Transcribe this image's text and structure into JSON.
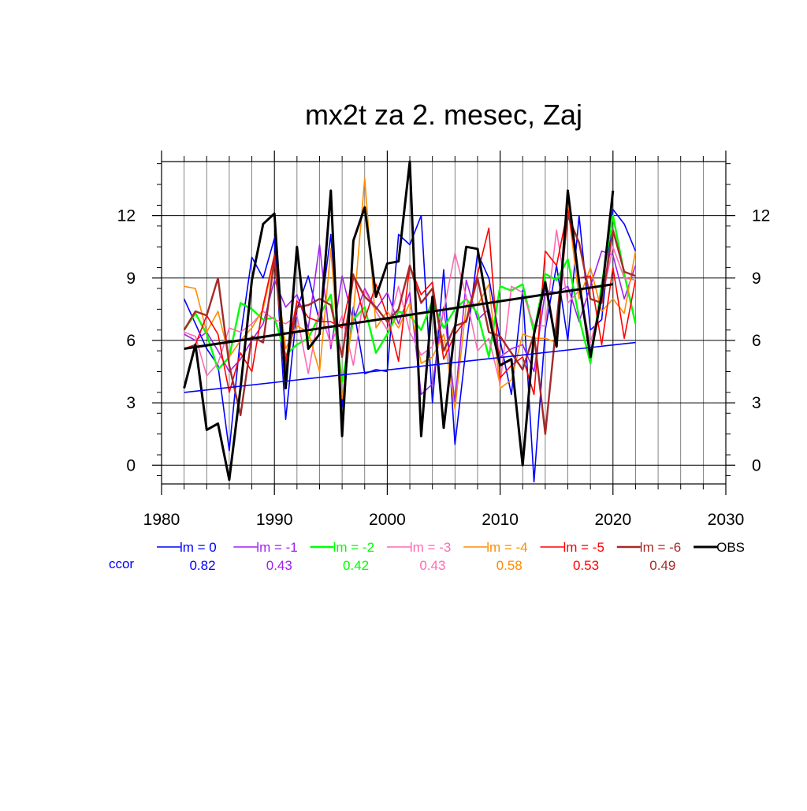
{
  "chart_data": {
    "type": "line",
    "title": "mx2t za 2. mesec, Zaj",
    "xlabel": "",
    "ylabel": "",
    "xlim": [
      1980,
      2030
    ],
    "ylim": [
      -0.9,
      14.6
    ],
    "x_ticks": [
      1980,
      1990,
      2000,
      2010,
      2020,
      2030
    ],
    "y_ticks": [
      0,
      3,
      6,
      9,
      12
    ],
    "grid": true,
    "legend_position": "bottom",
    "ccor_label": "ccor",
    "x": [
      1982,
      1983,
      1984,
      1985,
      1986,
      1987,
      1988,
      1989,
      1990,
      1991,
      1992,
      1993,
      1994,
      1995,
      1996,
      1997,
      1998,
      1999,
      2000,
      2001,
      2002,
      2003,
      2004,
      2005,
      2006,
      2007,
      2008,
      2009,
      2010,
      2011,
      2012,
      2013,
      2014,
      2015,
      2016,
      2017,
      2018,
      2019,
      2020,
      2021,
      2022
    ],
    "series": [
      {
        "name": "lm = 0",
        "ccor": "0.82",
        "color": "#0000ff",
        "width": 1.6,
        "values": [
          8.0,
          6.8,
          5.6,
          4.8,
          0.7,
          6.2,
          10.0,
          9.0,
          10.9,
          2.2,
          7.5,
          9.1,
          6.9,
          11.1,
          2.8,
          7.6,
          4.4,
          4.6,
          4.5,
          11.1,
          10.6,
          12.0,
          3.0,
          9.4,
          1.0,
          5.7,
          10.2,
          9.0,
          6.0,
          3.4,
          8.4,
          -0.8,
          6.5,
          9.6,
          6.0,
          12.0,
          6.5,
          7.0,
          12.3,
          11.6,
          10.3
        ]
      },
      {
        "name": "lm = -1",
        "ccor": "0.43",
        "color": "#a020f0",
        "width": 1.6,
        "values": [
          6.3,
          6.0,
          6.4,
          5.5,
          4.5,
          5.1,
          6.0,
          6.8,
          8.9,
          7.6,
          8.2,
          6.6,
          10.6,
          5.6,
          9.1,
          6.9,
          8.5,
          7.5,
          8.3,
          6.8,
          8.3,
          3.4,
          3.9,
          7.6,
          3.0,
          8.9,
          7.0,
          7.5,
          5.2,
          5.6,
          5.8,
          4.5,
          8.4,
          8.3,
          8.6,
          6.9,
          8.6,
          10.3,
          10.1,
          8.0,
          9.6
        ]
      },
      {
        "name": "lm = -2",
        "ccor": "0.42",
        "color": "#00ff00",
        "width": 2.4,
        "values": [
          6.5,
          7.3,
          6.3,
          4.6,
          5.2,
          7.8,
          7.5,
          7.0,
          7.1,
          5.3,
          5.8,
          6.1,
          7.2,
          8.2,
          4.0,
          7.0,
          7.6,
          5.4,
          6.3,
          7.4,
          7.2,
          6.5,
          7.9,
          6.6,
          7.5,
          8.0,
          7.3,
          5.2,
          8.6,
          8.4,
          8.7,
          6.4,
          9.2,
          8.9,
          9.9,
          7.1,
          4.9,
          8.7,
          12.0,
          9.2,
          6.8
        ]
      },
      {
        "name": "lm = -3",
        "ccor": "0.43",
        "color": "#ff69b4",
        "width": 1.6,
        "values": [
          6.4,
          6.2,
          4.3,
          4.9,
          6.6,
          6.4,
          6.8,
          7.4,
          7.0,
          6.8,
          7.2,
          4.4,
          7.5,
          5.8,
          7.2,
          4.8,
          8.4,
          7.4,
          6.5,
          8.6,
          6.4,
          5.3,
          5.7,
          7.4,
          10.2,
          8.1,
          5.5,
          6.1,
          3.9,
          8.6,
          8.3,
          6.7,
          6.7,
          11.3,
          7.8,
          8.4,
          5.9,
          7.9,
          10.5,
          9.0,
          8.9
        ]
      },
      {
        "name": "lm = -4",
        "ccor": "0.58",
        "color": "#ff8c00",
        "width": 1.6,
        "values": [
          8.6,
          8.5,
          6.4,
          7.4,
          5.2,
          6.0,
          6.6,
          7.5,
          10.0,
          5.6,
          6.7,
          6.4,
          4.5,
          10.4,
          3.2,
          7.3,
          13.8,
          6.6,
          7.4,
          6.6,
          7.8,
          4.9,
          5.2,
          6.3,
          2.7,
          7.7,
          7.7,
          8.7,
          3.7,
          4.1,
          6.3,
          6.1,
          6.1,
          5.9,
          12.5,
          8.0,
          9.5,
          7.4,
          8.0,
          7.3,
          10.3
        ]
      },
      {
        "name": "lm = -5",
        "ccor": "0.53",
        "color": "#ff0000",
        "width": 1.6,
        "values": [
          5.6,
          5.8,
          7.2,
          6.3,
          3.5,
          5.4,
          4.5,
          7.7,
          10.1,
          5.0,
          7.9,
          7.1,
          6.9,
          6.9,
          6.6,
          9.2,
          7.0,
          8.7,
          7.2,
          5.0,
          9.6,
          8.2,
          8.8,
          5.1,
          6.3,
          7.0,
          9.2,
          11.4,
          4.2,
          4.8,
          5.2,
          3.4,
          10.3,
          9.6,
          12.3,
          9.0,
          9.1,
          5.8,
          9.5,
          6.1,
          8.9
        ]
      },
      {
        "name": "lm = -6",
        "ccor": "0.49",
        "color": "#a52a2a",
        "width": 2.4,
        "values": [
          6.5,
          7.4,
          7.2,
          9.0,
          4.8,
          2.4,
          6.2,
          5.9,
          9.9,
          4.6,
          7.6,
          7.7,
          8.0,
          7.7,
          5.2,
          9.1,
          8.1,
          7.6,
          6.9,
          7.5,
          9.6,
          7.8,
          8.5,
          5.5,
          6.7,
          6.9,
          9.0,
          6.4,
          6.2,
          5.4,
          4.6,
          6.3,
          1.5,
          6.9,
          12.0,
          10.7,
          8.0,
          7.8,
          11.3,
          9.3,
          9.1
        ]
      },
      {
        "name": "OBS",
        "ccor": "",
        "color": "#000000",
        "width": 3.0,
        "values": [
          3.7,
          5.8,
          1.7,
          2.0,
          -0.7,
          3.7,
          8.9,
          11.6,
          12.1,
          3.7,
          10.5,
          5.6,
          6.3,
          13.2,
          1.4,
          10.8,
          12.4,
          8.1,
          9.7,
          9.8,
          14.6,
          1.4,
          8.1,
          1.8,
          6.6,
          10.5,
          10.4,
          7.2,
          4.8,
          5.1,
          0.0,
          6.3,
          8.8,
          5.7,
          13.2,
          8.8,
          5.2,
          8.2,
          13.2,
          null,
          null
        ]
      }
    ],
    "trend_lines": [
      {
        "name": "lm = 0 trend",
        "color": "#0000ff",
        "width": 1.6,
        "x": [
          1982,
          2022
        ],
        "y": [
          3.5,
          5.9
        ]
      },
      {
        "name": "OBS trend",
        "color": "#000000",
        "width": 3.0,
        "x": [
          1982,
          2020
        ],
        "y": [
          5.6,
          8.7
        ]
      }
    ]
  }
}
